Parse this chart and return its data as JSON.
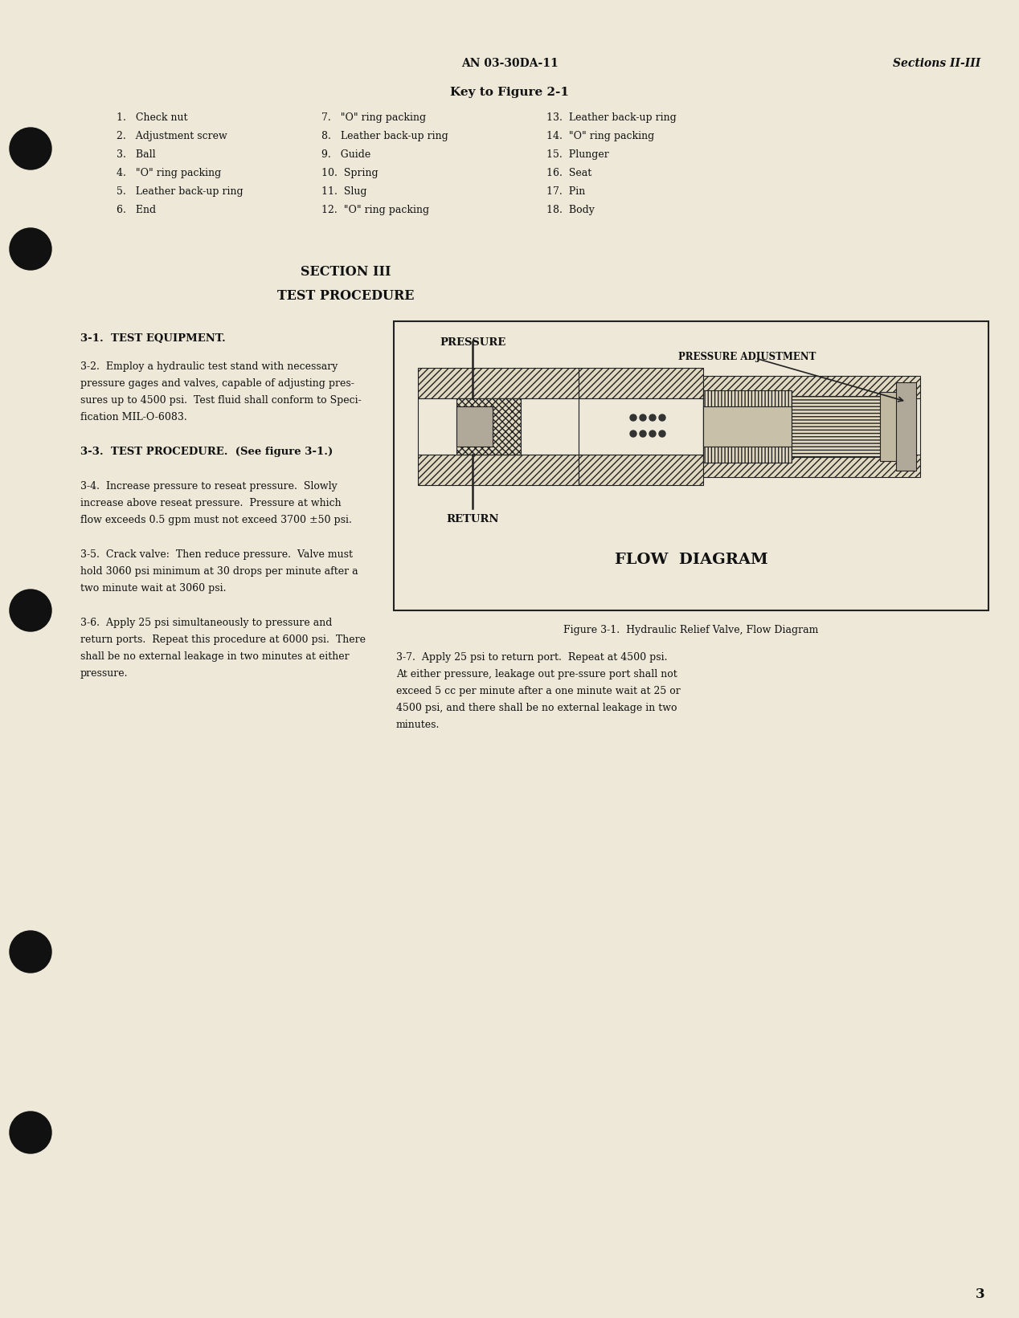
{
  "bg_color": "#ede8d8",
  "page_header_center": "AN 03-30DA-11",
  "page_header_right": "Sections II-III",
  "key_title": "Key to Figure 2-1",
  "key_col1": [
    "1.   Check nut",
    "2.   Adjustment screw",
    "3.   Ball",
    "4.   \"O\" ring packing",
    "5.   Leather back-up ring",
    "6.   End"
  ],
  "key_col2": [
    "7.   \"O\" ring packing",
    "8.   Leather back-up ring",
    "9.   Guide",
    "10.  Spring",
    "11.  Slug",
    "12.  \"O\" ring packing"
  ],
  "key_col3": [
    "13.  Leather back-up ring",
    "14.  \"O\" ring packing",
    "15.  Plunger",
    "16.  Seat",
    "17.  Pin",
    "18.  Body"
  ],
  "section_title": "SECTION III",
  "section_subtitle": "TEST PROCEDURE",
  "para_31_head": "3-1.  TEST EQUIPMENT.",
  "para_33_head": "3-3.  TEST PROCEDURE.  (See figure 3-1.)",
  "fig_caption": "Figure 3-1.  Hydraulic Relief Valve, Flow Diagram",
  "fig_label_pressure": "PRESSURE",
  "fig_label_pressure_adj": "PRESSURE ADJUSTMENT",
  "fig_label_return": "RETURN",
  "fig_label_flow": "FLOW  DIAGRAM",
  "page_num": "3",
  "text_color": "#111111"
}
